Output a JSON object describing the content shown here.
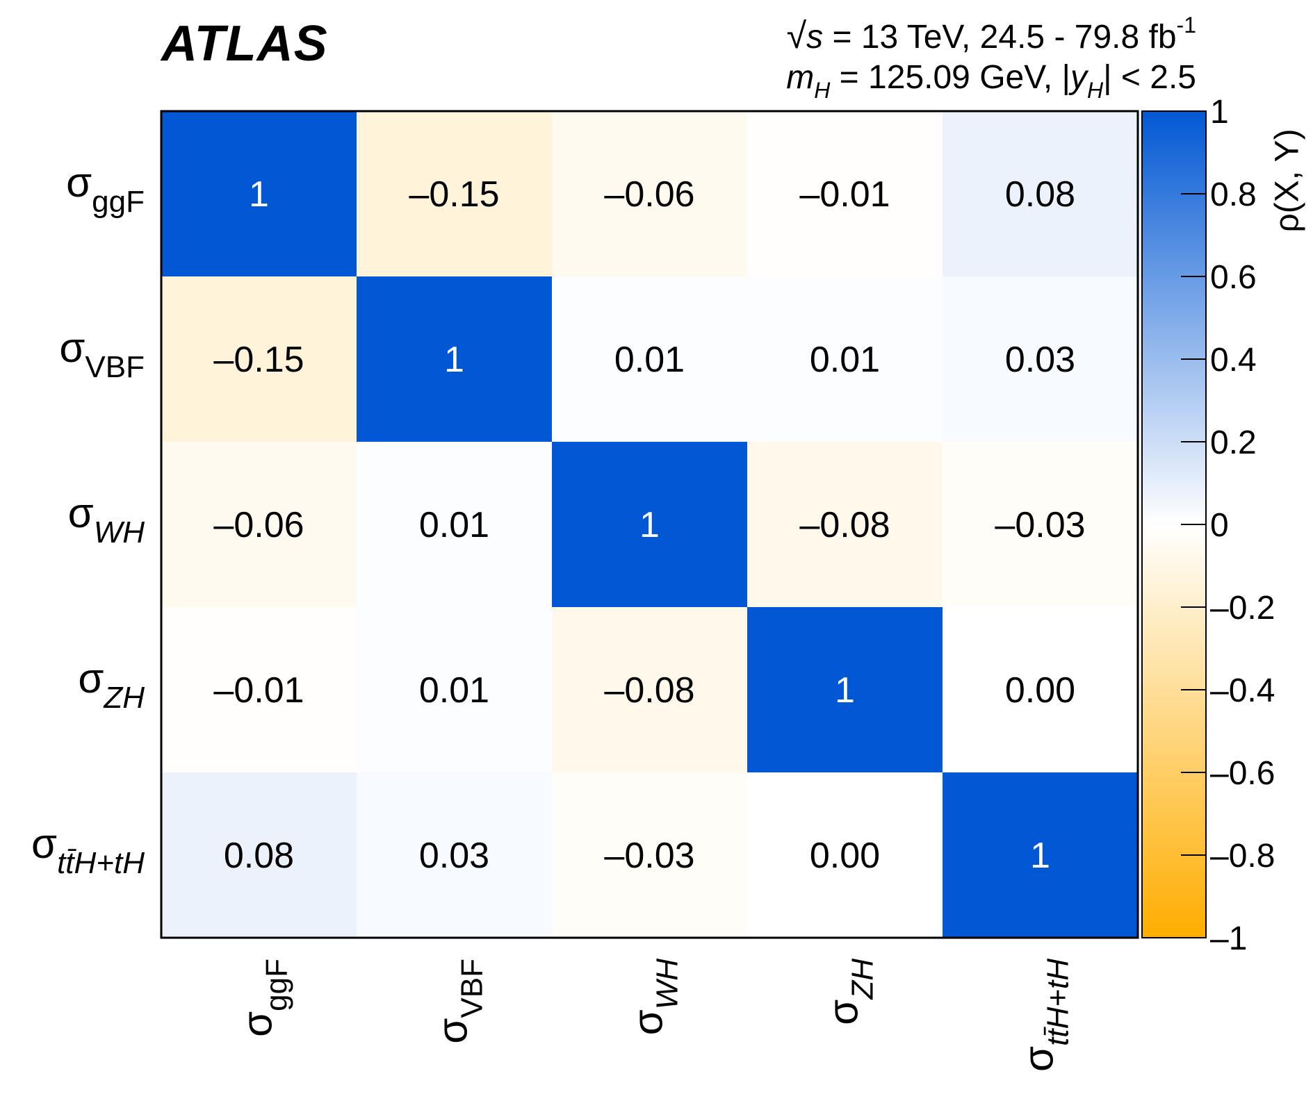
{
  "header": {
    "experiment": "ATLAS",
    "energy_prefix": "√",
    "energy_s": "s",
    "energy_text": " = 13 TeV, 24.5 - 79.8 fb",
    "energy_exp": "-1",
    "mass_m": "m",
    "mass_sub": "H",
    "mass_text": " = 125.09 GeV, |",
    "rap_y": "y",
    "rap_sub": "H",
    "rap_text": "| < 2.5"
  },
  "chart_data": {
    "type": "heatmap",
    "rows": [
      {
        "sym": "σ",
        "sub": "ggF",
        "italic": false
      },
      {
        "sym": "σ",
        "sub": "VBF",
        "italic": false
      },
      {
        "sym": "σ",
        "sub": "WH",
        "italic": true
      },
      {
        "sym": "σ",
        "sub": "ZH",
        "italic": true
      },
      {
        "sym": "σ",
        "sub": "tt̄H+tH",
        "italic": true
      }
    ],
    "columns": [
      {
        "sym": "σ",
        "sub": "ggF",
        "italic": false
      },
      {
        "sym": "σ",
        "sub": "VBF",
        "italic": false
      },
      {
        "sym": "σ",
        "sub": "WH",
        "italic": true
      },
      {
        "sym": "σ",
        "sub": "ZH",
        "italic": true
      },
      {
        "sym": "σ",
        "sub": "tt̄H+tH",
        "italic": true
      }
    ],
    "values": [
      [
        1,
        -0.15,
        -0.06,
        -0.01,
        0.08
      ],
      [
        -0.15,
        1,
        0.01,
        0.01,
        0.03
      ],
      [
        -0.06,
        0.01,
        1,
        -0.08,
        -0.03
      ],
      [
        -0.01,
        0.01,
        -0.08,
        1,
        0.0
      ],
      [
        0.08,
        0.03,
        -0.03,
        0.0,
        1
      ]
    ],
    "cell_labels": [
      [
        "1",
        "–0.15",
        "–0.06",
        "–0.01",
        "0.08"
      ],
      [
        "–0.15",
        "1",
        "0.01",
        "0.01",
        "0.03"
      ],
      [
        "–0.06",
        "0.01",
        "1",
        "–0.08",
        "–0.03"
      ],
      [
        "–0.01",
        "0.01",
        "–0.08",
        "1",
        "0.00"
      ],
      [
        "0.08",
        "0.03",
        "–0.03",
        "0.00",
        "1"
      ]
    ],
    "zlim": [
      -1,
      1
    ],
    "z_label": "ρ(X, Y)",
    "z_ticks": [
      1,
      0.8,
      0.6,
      0.4,
      0.2,
      0,
      -0.2,
      -0.4,
      -0.6,
      -0.8,
      -1
    ],
    "z_tick_labels": [
      "1",
      "0.8",
      "0.6",
      "0.4",
      "0.2",
      "0",
      "–0.2",
      "–0.4",
      "–0.6",
      "–0.8",
      "–1"
    ],
    "colors": {
      "positive_max": "#0258d4",
      "zero": "#ffffff",
      "negative_max": "#ffad00",
      "label_on_dark": "#ffffff",
      "label_on_light": "#000000"
    }
  }
}
